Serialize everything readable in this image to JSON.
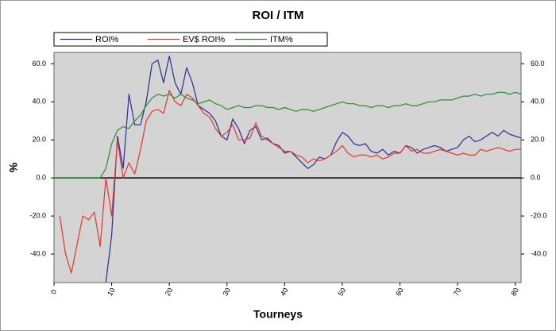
{
  "chart_data": {
    "type": "line",
    "title": "ROI / ITM",
    "xlabel": "Tourneys",
    "ylabel": "%",
    "x": [
      0,
      1,
      2,
      3,
      4,
      5,
      6,
      7,
      8,
      9,
      10,
      11,
      12,
      13,
      14,
      15,
      16,
      17,
      18,
      19,
      20,
      21,
      22,
      23,
      24,
      25,
      26,
      27,
      28,
      29,
      30,
      31,
      32,
      33,
      34,
      35,
      36,
      37,
      38,
      39,
      40,
      41,
      42,
      43,
      44,
      45,
      46,
      47,
      48,
      49,
      50,
      51,
      52,
      53,
      54,
      55,
      56,
      57,
      58,
      59,
      60,
      61,
      62,
      63,
      64,
      65,
      66,
      67,
      68,
      69,
      70,
      71,
      72,
      73,
      74,
      75,
      76,
      77,
      78,
      79,
      80,
      81
    ],
    "series": [
      {
        "name": "ROI%",
        "color": "#2b2b9a",
        "values": [
          null,
          null,
          null,
          null,
          null,
          null,
          null,
          null,
          null,
          -55,
          -30,
          22,
          5,
          44,
          28,
          28,
          40,
          60,
          62,
          50,
          64,
          50,
          44,
          58,
          50,
          38,
          36,
          34,
          30,
          22,
          20,
          31,
          26,
          18,
          25,
          27,
          20,
          21,
          18,
          17,
          13,
          14,
          11,
          8,
          5,
          7,
          11,
          10,
          12,
          19,
          24,
          22,
          18,
          17,
          18,
          14,
          13,
          15,
          12,
          14,
          13,
          17,
          16,
          13,
          15,
          16,
          17,
          16,
          14,
          15,
          16,
          20,
          22,
          19,
          20,
          22,
          24,
          22,
          25,
          23,
          22,
          21
        ]
      },
      {
        "name": "EV$ ROI%",
        "color": "#e8342c",
        "values": [
          null,
          -20,
          -40,
          -50,
          -35,
          -20,
          -22,
          -18,
          -36,
          0,
          -20,
          20,
          0,
          8,
          2,
          15,
          30,
          35,
          36,
          34,
          46,
          40,
          38,
          44,
          42,
          38,
          34,
          32,
          26,
          22,
          24,
          28,
          20,
          20,
          21,
          29,
          22,
          20,
          18,
          16,
          14,
          14,
          12,
          11,
          8,
          10,
          9,
          10,
          12,
          14,
          17,
          13,
          11,
          12,
          12,
          11,
          12,
          10,
          11,
          13,
          13,
          17,
          14,
          15,
          13,
          13,
          14,
          15,
          14,
          13,
          12,
          13,
          12,
          12,
          15,
          14,
          15,
          16,
          15,
          14,
          15,
          15
        ]
      },
      {
        "name": "ITM%",
        "color": "#2e8b2e",
        "values": [
          0,
          0,
          0,
          0,
          0,
          0,
          0,
          0,
          0,
          5,
          18,
          25,
          27,
          26,
          30,
          33,
          38,
          42,
          44,
          43,
          44,
          42,
          44,
          42,
          41,
          39,
          40,
          41,
          39,
          38,
          36,
          37,
          38,
          37,
          37,
          38,
          38,
          37,
          37,
          36,
          37,
          36,
          35,
          36,
          36,
          35,
          36,
          37,
          38,
          39,
          40,
          39,
          39,
          38,
          38,
          37,
          38,
          38,
          37,
          38,
          38,
          39,
          38,
          38,
          39,
          40,
          40,
          41,
          41,
          41,
          42,
          43,
          43,
          44,
          43,
          44,
          44,
          45,
          45,
          44,
          45,
          44
        ]
      }
    ],
    "xlim": [
      0,
      81
    ],
    "xticks": [
      0,
      10,
      20,
      30,
      40,
      50,
      60,
      70,
      80
    ],
    "ylim": [
      -55,
      66
    ],
    "yticks": [
      {
        "value": -40,
        "label": "-40.0"
      },
      {
        "value": -20,
        "label": "-20.0"
      },
      {
        "value": 0,
        "label": "0.0"
      },
      {
        "value": 20,
        "label": "20.0"
      },
      {
        "value": 40,
        "label": "40.0"
      },
      {
        "value": 60,
        "label": "60.0"
      }
    ],
    "grid": false,
    "legend": "top"
  }
}
